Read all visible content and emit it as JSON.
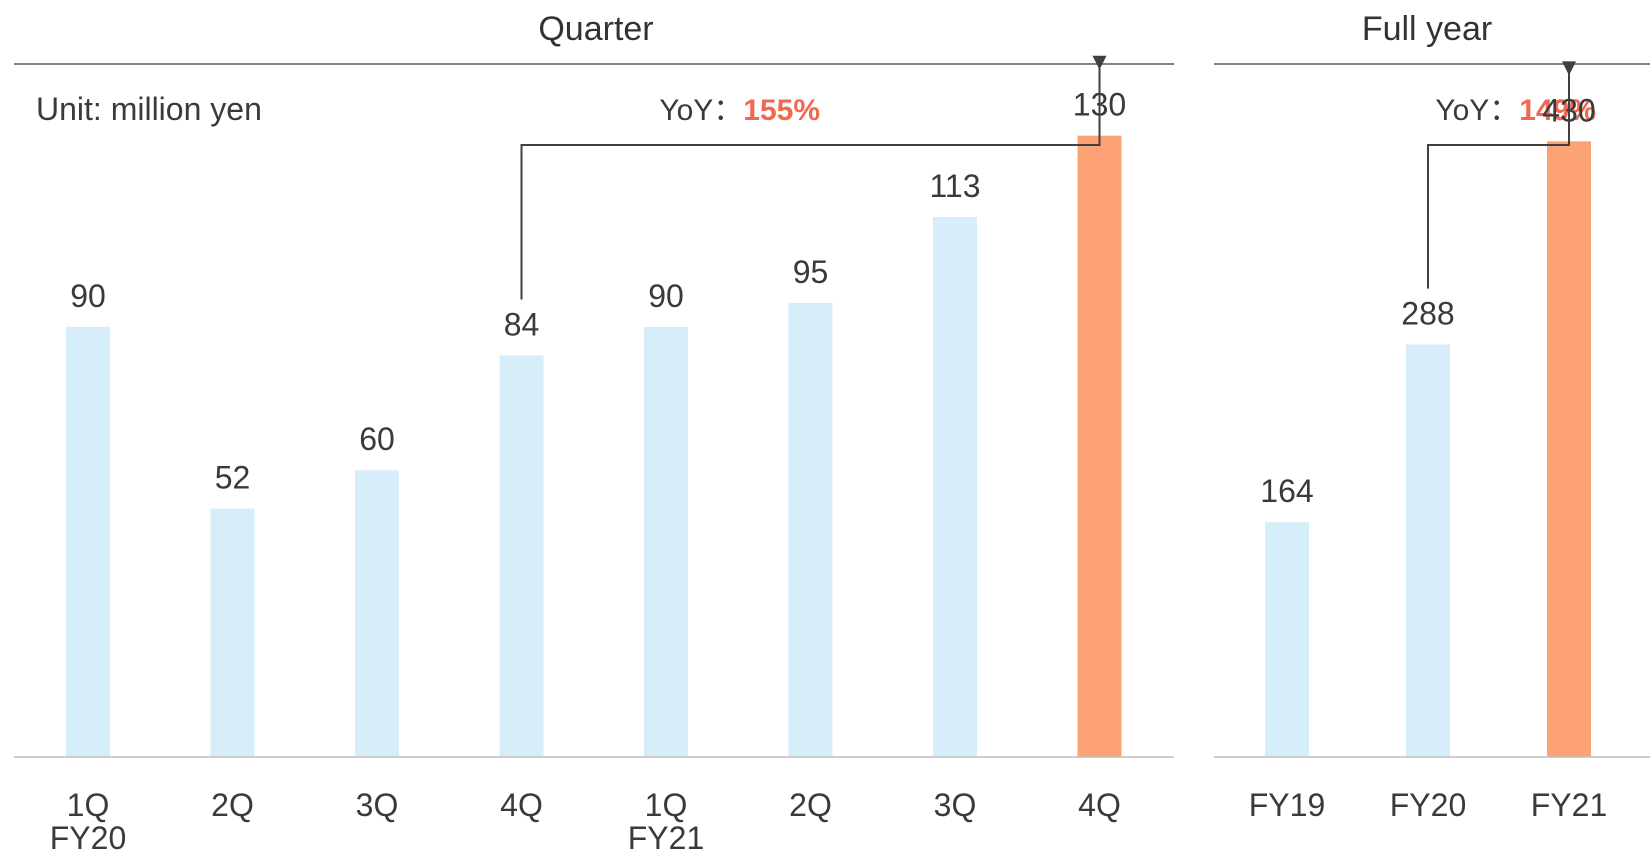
{
  "chart_data": [
    {
      "type": "bar",
      "title": "Quarter",
      "unit_label": "Unit: million yen",
      "categories": [
        "1Q",
        "2Q",
        "3Q",
        "4Q",
        "1Q",
        "2Q",
        "3Q",
        "4Q"
      ],
      "category_groups": [
        {
          "label": "FY20",
          "under_category": 0
        },
        {
          "label": "FY21",
          "under_category": 4
        }
      ],
      "values": [
        90,
        52,
        60,
        84,
        90,
        95,
        113,
        130
      ],
      "highlight_index": 7,
      "ylim": [
        0,
        145
      ],
      "yoy": {
        "label": "YoY：",
        "value": "155%",
        "from_index": 3,
        "to_index": 7
      }
    },
    {
      "type": "bar",
      "title": "Full year",
      "categories": [
        "FY19",
        "FY20",
        "FY21"
      ],
      "values": [
        164,
        288,
        430
      ],
      "highlight_index": 2,
      "ylim": [
        0,
        484
      ],
      "yoy": {
        "label": "YoY：",
        "value": "149%",
        "from_index": 1,
        "to_index": 2
      }
    }
  ],
  "colors": {
    "bar": "#d6edfa",
    "highlight": "#fca275",
    "yoy_value": "#f2674e",
    "axis": "#bfbfbf",
    "header_rule": "#595959",
    "arrow": "#404040"
  }
}
